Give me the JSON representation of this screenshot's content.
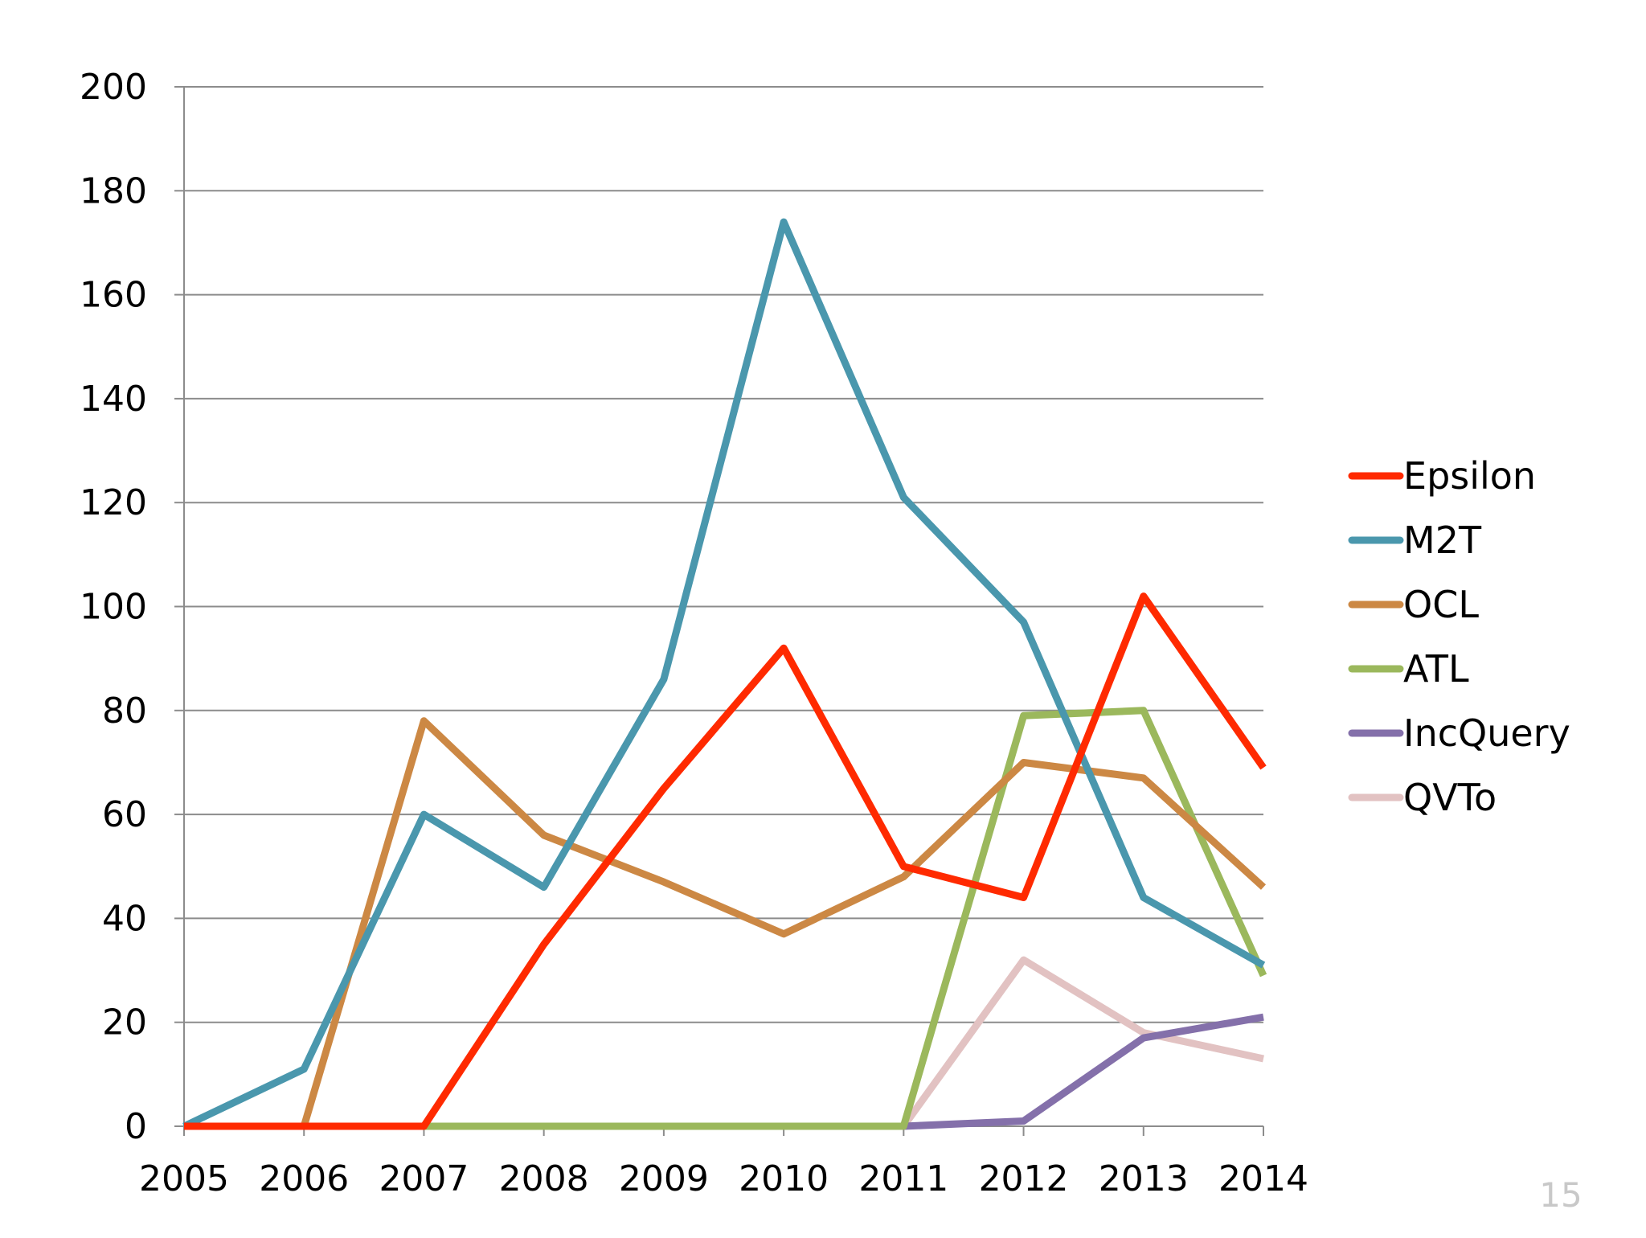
{
  "chart_data": {
    "type": "line",
    "title": "",
    "xlabel": "",
    "ylabel": "",
    "x": [
      "2005",
      "2006",
      "2007",
      "2008",
      "2009",
      "2010",
      "2011",
      "2012",
      "2013",
      "2014"
    ],
    "ylim": [
      0,
      200
    ],
    "yticks": [
      0,
      20,
      40,
      60,
      80,
      100,
      120,
      140,
      160,
      180,
      200
    ],
    "grid": true,
    "legend_position": "right",
    "series": [
      {
        "name": "Epsilon",
        "color": "#ff2a00",
        "values": [
          0,
          0,
          0,
          35,
          65,
          92,
          50,
          44,
          102,
          69
        ]
      },
      {
        "name": "M2T",
        "color": "#4a97ad",
        "values": [
          0,
          11,
          60,
          46,
          86,
          174,
          121,
          97,
          44,
          31
        ]
      },
      {
        "name": "OCL",
        "color": "#cc8844",
        "values": [
          0,
          0,
          78,
          56,
          47,
          37,
          48,
          70,
          67,
          46
        ]
      },
      {
        "name": "ATL",
        "color": "#9bb85c",
        "values": [
          0,
          0,
          0,
          0,
          0,
          0,
          0,
          79,
          80,
          29
        ]
      },
      {
        "name": "IncQuery",
        "color": "#8470aa",
        "values": [
          0,
          0,
          0,
          0,
          0,
          0,
          0,
          1,
          17,
          21
        ]
      },
      {
        "name": "QVTo",
        "color": "#e2c2c2",
        "values": [
          0,
          0,
          0,
          0,
          0,
          0,
          0,
          32,
          18,
          13
        ]
      }
    ]
  },
  "page_number": "15"
}
